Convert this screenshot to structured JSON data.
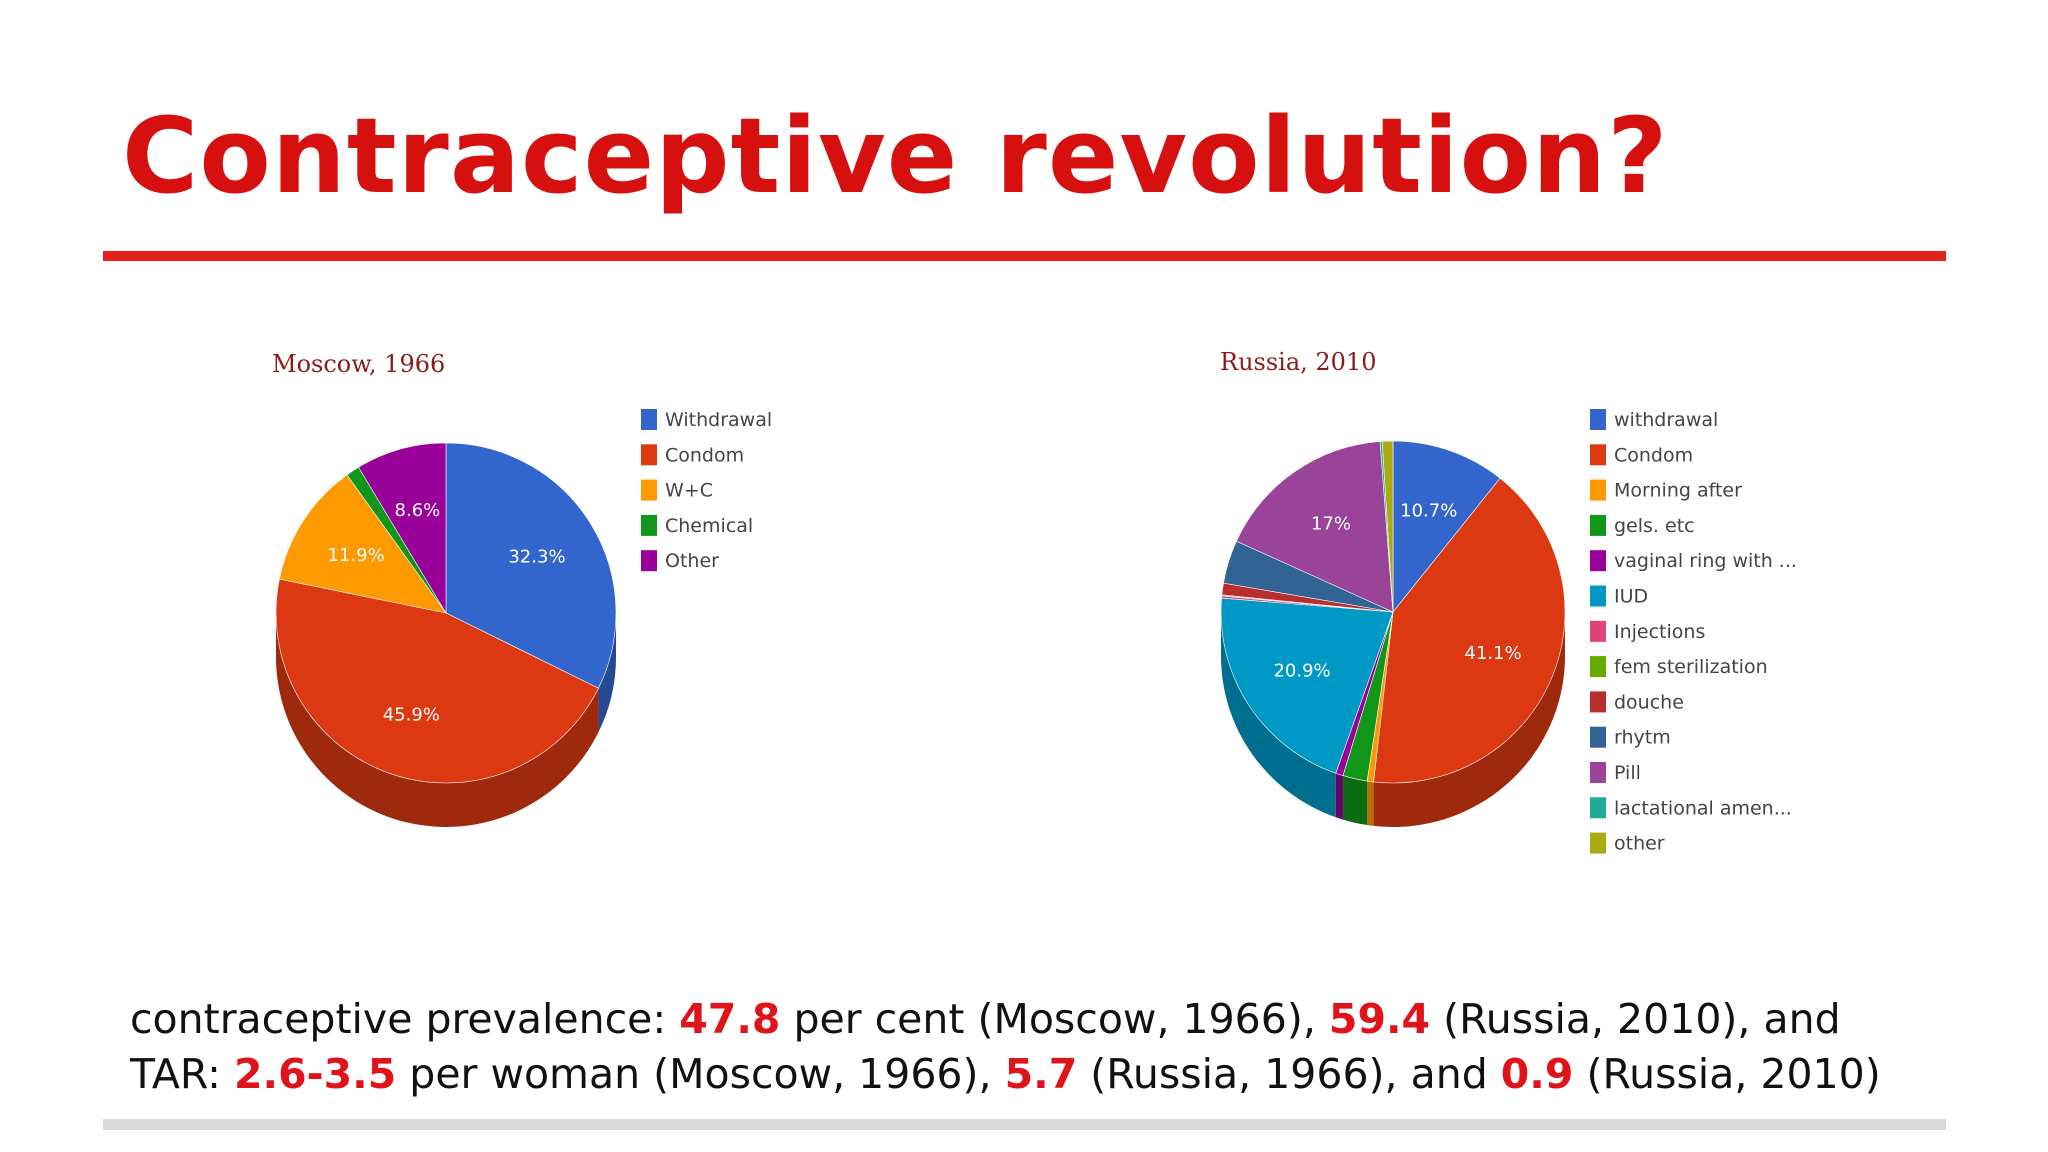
{
  "slide": {
    "title": "Contraceptive revolution?"
  },
  "footer": {
    "line1": {
      "t1": "contraceptive prevalence: ",
      "v1": "47.8",
      "t2": " per cent (Moscow, 1966), ",
      "v2": "59.4",
      "t3": " (Russia, 2010), and"
    },
    "line2": {
      "t1": "TAR: ",
      "v1": "2.6-3.5",
      "t2": " per woman (Moscow, 1966), ",
      "v2": "5.7",
      "t3": " (Russia, 1966), and ",
      "v3": "0.9",
      "t4": " (Russia, 2010)"
    }
  },
  "chart_data": [
    {
      "type": "pie",
      "title": "Moscow, 1966",
      "legend_position": "right",
      "slices": [
        {
          "name": "Withdrawal",
          "value": 32.3,
          "label": "32.3%",
          "color": "#3366cc"
        },
        {
          "name": "Condom",
          "value": 45.9,
          "label": "45.9%",
          "color": "#dc3912"
        },
        {
          "name": "W+C",
          "value": 11.9,
          "label": "11.9%",
          "color": "#ff9900"
        },
        {
          "name": "Chemical",
          "value": 1.3,
          "label": "",
          "color": "#109618"
        },
        {
          "name": "Other",
          "value": 8.6,
          "label": "8.6%",
          "color": "#990099"
        }
      ]
    },
    {
      "type": "pie",
      "title": "Russia, 2010",
      "legend_position": "right",
      "slices": [
        {
          "name": "withdrawal",
          "value": 10.7,
          "label": "10.7%",
          "color": "#3366cc"
        },
        {
          "name": "Condom",
          "value": 41.1,
          "label": "41.1%",
          "color": "#dc3912"
        },
        {
          "name": "Morning after",
          "value": 0.6,
          "label": "",
          "color": "#ff9900"
        },
        {
          "name": "gels. etc",
          "value": 2.3,
          "label": "",
          "color": "#109618"
        },
        {
          "name": "vaginal ring with ...",
          "value": 0.7,
          "label": "",
          "color": "#990099"
        },
        {
          "name": "IUD",
          "value": 20.9,
          "label": "20.9%",
          "color": "#0099c6"
        },
        {
          "name": "Injections",
          "value": 0.2,
          "label": "",
          "color": "#dd4477"
        },
        {
          "name": "fem sterilization",
          "value": 0.1,
          "label": "",
          "color": "#66aa00"
        },
        {
          "name": "douche",
          "value": 1.1,
          "label": "",
          "color": "#b82e2e"
        },
        {
          "name": "rhytm",
          "value": 4.1,
          "label": "",
          "color": "#316395"
        },
        {
          "name": "Pill",
          "value": 17.0,
          "label": "17%",
          "color": "#994499"
        },
        {
          "name": "lactational amen...",
          "value": 0.2,
          "label": "",
          "color": "#22aa99"
        },
        {
          "name": "other",
          "value": 1.0,
          "label": "",
          "color": "#aaaa11"
        }
      ]
    }
  ]
}
